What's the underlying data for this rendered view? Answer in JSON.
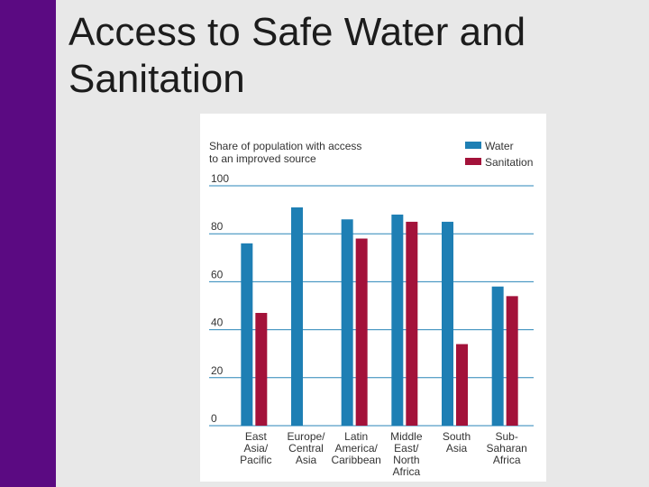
{
  "slide": {
    "title": "Access to Safe Water and Sanitation",
    "accent_color": "#5b0a82",
    "background": "#e8e8e8"
  },
  "chart_data": {
    "type": "bar",
    "title": "Share of population with access to an improved source",
    "title_lines": [
      "Share of population with access",
      "to an improved source"
    ],
    "xlabel": "",
    "ylabel": "",
    "ylim": [
      0,
      100
    ],
    "yticks": [
      0,
      20,
      40,
      60,
      80,
      100
    ],
    "grid": true,
    "legend": "top-right",
    "categories": [
      [
        "East",
        "Asia/",
        "Pacific"
      ],
      [
        "Europe/",
        "Central",
        "Asia"
      ],
      [
        "Latin",
        "America/",
        "Caribbean"
      ],
      [
        "Middle",
        "East/",
        "North",
        "Africa"
      ],
      [
        "South",
        "Asia"
      ],
      [
        "Sub-",
        "Saharan",
        "Africa"
      ]
    ],
    "series": [
      {
        "name": "Water",
        "color": "#1e7fb4",
        "values": [
          76,
          91,
          86,
          88,
          85,
          58
        ]
      },
      {
        "name": "Sanitation",
        "color": "#a3123a",
        "values": [
          47,
          null,
          78,
          85,
          34,
          54
        ]
      }
    ]
  }
}
